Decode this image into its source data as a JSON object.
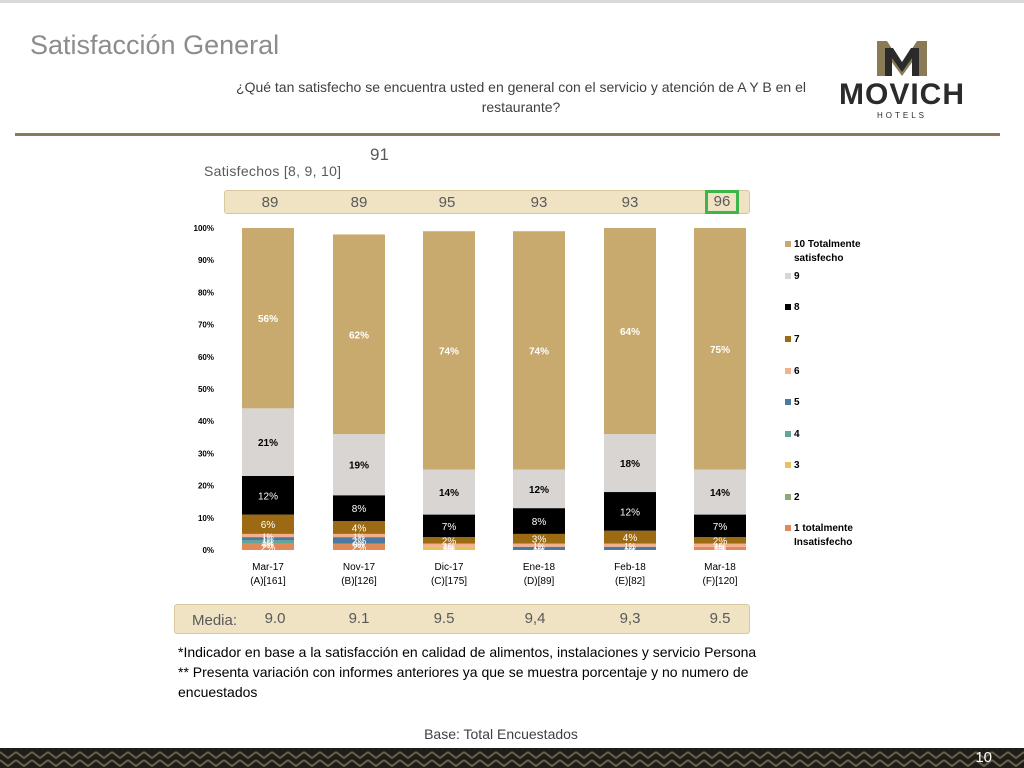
{
  "page": {
    "title": "Satisfacción General",
    "question": "¿Qué tan satisfecho se encuentra usted en general con el servicio y atención de A Y B en el restaurante?",
    "logo_text": "MOVICH",
    "logo_sub": "HOTELS",
    "lone_number": "91",
    "satisfechos_label": "Satisfechos [8, 9, 10]",
    "satisfechos_values": [
      "89",
      "89",
      "95",
      "93",
      "93",
      "96"
    ],
    "media_label": "Media:",
    "media_values": [
      "9.0",
      "9.1",
      "9.5",
      "9,4",
      "9,3",
      "9.5"
    ],
    "notes": [
      "*Indicador en base a la satisfacción en calidad de alimentos, instalaciones y servicio Persona",
      "** Presenta variación con informes anteriores ya que se muestra porcentaje y no numero de encuestados"
    ],
    "base": "Base: Total Encuestados",
    "page_number": "10"
  },
  "chart_data": {
    "type": "bar",
    "stacked": true,
    "categories": [
      "Mar-17",
      "Nov-17",
      "Dic-17",
      "Ene-18",
      "Feb-18",
      "Mar-18"
    ],
    "category_sub": [
      "(A)[161]",
      "(B)[126]",
      "(C)[175]",
      "(D)[89]",
      "(E)[82]",
      "(F)[120]"
    ],
    "ylim": [
      0,
      100
    ],
    "yticks": [
      "0%",
      "10%",
      "20%",
      "30%",
      "40%",
      "50%",
      "60%",
      "70%",
      "80%",
      "90%",
      "100%"
    ],
    "series": [
      {
        "name": "1 totalmente Insatisfecho",
        "color": "#e08a5a",
        "values": [
          2,
          2,
          0,
          0,
          0,
          1
        ],
        "labels": [
          "2%",
          "2%",
          "0%",
          "0%",
          "0%",
          "1%"
        ],
        "label_color": "#ffffff",
        "bold": false
      },
      {
        "name": "2",
        "color": "#8fa878",
        "values": [
          0,
          0,
          0,
          0,
          0,
          0
        ],
        "labels": [
          "0%",
          "0%",
          "0%",
          "0%",
          "0%",
          "0%"
        ],
        "label_color": "#ffffff",
        "bold": false
      },
      {
        "name": "3",
        "color": "#e8c15a",
        "values": [
          0,
          0,
          1,
          0,
          0,
          0
        ],
        "labels": [
          "0%",
          "0%",
          "1%",
          "0%",
          "0%",
          "0%"
        ],
        "label_color": "#ffffff",
        "bold": false
      },
      {
        "name": "4",
        "color": "#5fa898",
        "values": [
          1,
          0,
          0,
          0,
          0,
          0
        ],
        "labels": [
          "1%",
          "0%",
          "0%",
          "0%",
          "0%",
          "0%"
        ],
        "label_color": "#ffffff",
        "bold": false
      },
      {
        "name": "5",
        "color": "#4a7aa0",
        "values": [
          1,
          2,
          0,
          1,
          1,
          0
        ],
        "labels": [
          "1%",
          "2%",
          "0%",
          "1%",
          "1%",
          "0%"
        ],
        "label_color": "#ffffff",
        "bold": false
      },
      {
        "name": "6",
        "color": "#f4b08a",
        "values": [
          1,
          1,
          1,
          1,
          1,
          1
        ],
        "labels": [
          "1%",
          "1%",
          "1%",
          "1%",
          "1%",
          "1%"
        ],
        "label_color": "#ffffff",
        "bold": false
      },
      {
        "name": "7",
        "color": "#9c6a12",
        "values": [
          6,
          4,
          2,
          3,
          4,
          2
        ],
        "labels": [
          "6%",
          "4%",
          "2%",
          "3%",
          "4%",
          "2%"
        ],
        "label_color": "#ffffff",
        "bold": false
      },
      {
        "name": "8",
        "color": "#000000",
        "values": [
          12,
          8,
          7,
          8,
          12,
          7
        ],
        "labels": [
          "12%",
          "8%",
          "7%",
          "8%",
          "12%",
          "7%"
        ],
        "label_color": "#ffffff",
        "bold": false
      },
      {
        "name": "9",
        "color": "#d9d5d3",
        "values": [
          21,
          19,
          14,
          12,
          18,
          14
        ],
        "labels": [
          "21%",
          "19%",
          "14%",
          "12%",
          "18%",
          "14%"
        ],
        "label_color": "#000000",
        "bold": true
      },
      {
        "name": "10 Totalmente satisfecho",
        "color": "#c9aa6e",
        "values": [
          56,
          62,
          74,
          74,
          64,
          75
        ],
        "labels": [
          "56%",
          "62%",
          "74%",
          "74%",
          "64%",
          "75%"
        ],
        "label_color": "#ffffff",
        "bold": true
      }
    ]
  }
}
